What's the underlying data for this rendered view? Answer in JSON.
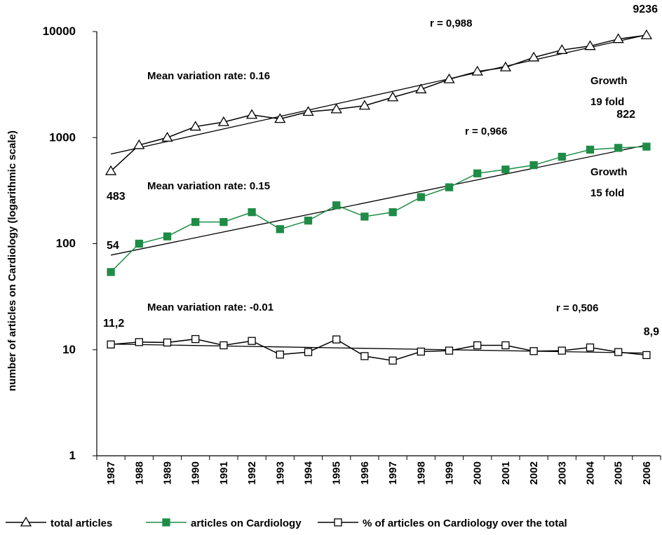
{
  "chart_data": {
    "type": "line",
    "y_axis_label": "number of articles on Cardiology (logarithmic scale)",
    "log_scale": true,
    "ylim": [
      1,
      10000
    ],
    "yticks": [
      1,
      10,
      100,
      1000,
      10000
    ],
    "categories": [
      "1987",
      "1988",
      "1989",
      "1990",
      "1991",
      "1992",
      "1993",
      "1994",
      "1995",
      "1996",
      "1997",
      "1998",
      "1999",
      "2000",
      "2001",
      "2002",
      "2003",
      "2004",
      "2005",
      "2006"
    ],
    "series": [
      {
        "name": "total articles",
        "color": "#000000",
        "marker": "triangle-open",
        "values": [
          483,
          850,
          1000,
          1270,
          1400,
          1640,
          1500,
          1750,
          1850,
          2000,
          2400,
          2850,
          3550,
          4200,
          4600,
          5700,
          6700,
          7300,
          8500,
          9236
        ],
        "value_labels": [
          "483",
          null,
          null,
          null,
          null,
          null,
          null,
          null,
          null,
          null,
          null,
          null,
          null,
          null,
          null,
          null,
          null,
          null,
          null,
          "9236"
        ],
        "trend": [
          700,
          9300
        ]
      },
      {
        "name": "articles on Cardiology",
        "color": "#1e8c46",
        "marker": "square-filled",
        "values": [
          54,
          100,
          117,
          160,
          160,
          198,
          137,
          165,
          230,
          180,
          198,
          275,
          340,
          460,
          500,
          550,
          660,
          770,
          800,
          822
        ],
        "value_labels": [
          "54",
          null,
          null,
          null,
          null,
          null,
          null,
          null,
          null,
          null,
          null,
          null,
          null,
          null,
          null,
          null,
          null,
          null,
          null,
          "822"
        ],
        "trend": [
          78,
          850
        ]
      },
      {
        "name": "% of articles on Cardiology over the total",
        "color": "#000000",
        "marker": "square-open",
        "values": [
          11.2,
          11.8,
          11.7,
          12.6,
          11.0,
          12.1,
          9.0,
          9.5,
          12.5,
          8.7,
          7.9,
          9.6,
          9.8,
          11.0,
          11.0,
          9.7,
          9.8,
          10.5,
          9.5,
          8.9
        ],
        "value_labels": [
          "11,2",
          null,
          null,
          null,
          null,
          null,
          null,
          null,
          null,
          null,
          null,
          null,
          null,
          null,
          null,
          null,
          null,
          null,
          null,
          "8,9"
        ],
        "trend": [
          11.3,
          9.3
        ]
      }
    ],
    "annotations": [
      "r = 0,988",
      "Mean variation rate: 0.16",
      "Growth",
      "19 fold",
      "r = 0,966",
      "Mean variation rate: 0.15",
      "Growth",
      "15 fold",
      "Mean variation rate: -0.01",
      "r = 0,506"
    ]
  }
}
